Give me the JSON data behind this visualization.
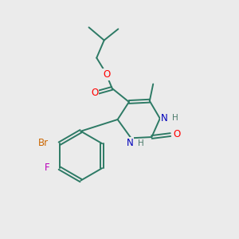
{
  "background_color": "#ebebeb",
  "bond_color": "#2d7a65",
  "atom_colors": {
    "O": "#ff0000",
    "N": "#0000bb",
    "Br": "#cc6600",
    "F": "#bb00bb",
    "H_gray": "#4a7a6a"
  },
  "figsize": [
    3.0,
    3.0
  ],
  "dpi": 100
}
